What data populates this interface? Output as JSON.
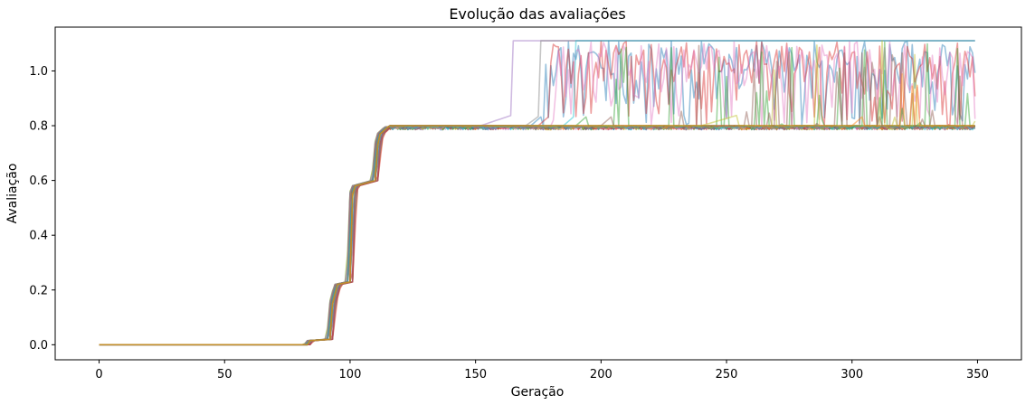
{
  "chart_data": {
    "type": "line",
    "title": "Evolução das avaliações",
    "xlabel": "Geração",
    "ylabel": "Avaliação",
    "xlim": [
      -17.5,
      367.5
    ],
    "ylim": [
      -0.055,
      1.16
    ],
    "xticks": [
      0,
      50,
      100,
      150,
      200,
      250,
      300,
      350
    ],
    "xtick_labels": [
      "0",
      "50",
      "100",
      "150",
      "200",
      "250",
      "300",
      "350"
    ],
    "yticks": [
      0.0,
      0.2,
      0.4,
      0.6,
      0.8,
      1.0
    ],
    "ytick_labels": [
      "0.0",
      "0.2",
      "0.4",
      "0.6",
      "0.8",
      "1.0"
    ],
    "grid": false,
    "legend": "none",
    "series_summary": "Many overlapping translucent runs (one line per run) over generations 0 to 349",
    "common_profile": {
      "x": [
        0,
        83,
        84,
        92,
        93,
        95,
        100,
        101,
        102,
        110,
        111,
        112,
        115,
        120,
        150,
        349
      ],
      "y": [
        0.0,
        0.0,
        0.015,
        0.02,
        0.15,
        0.22,
        0.23,
        0.55,
        0.58,
        0.6,
        0.73,
        0.77,
        0.795,
        0.797,
        0.8,
        0.8
      ]
    },
    "upper_plateau": 1.11,
    "lower_plateau": 0.8,
    "breakouts": [
      {
        "first_gen": 152,
        "switch_gen": 165,
        "final": 1.11,
        "behavior": "steady"
      },
      {
        "first_gen": 170,
        "switch_gen": 176,
        "final": 1.11,
        "behavior": "steady"
      },
      {
        "first_gen": 172,
        "switch_gen": 177,
        "final": 1.11,
        "behavior": "oscillating"
      },
      {
        "first_gen": 175,
        "switch_gen": 180,
        "final": 1.11,
        "behavior": "oscillating"
      },
      {
        "first_gen": 180,
        "switch_gen": 182,
        "final": 1.1,
        "behavior": "oscillating"
      },
      {
        "first_gen": 185,
        "switch_gen": 190,
        "final": 1.11,
        "behavior": "steady"
      },
      {
        "first_gen": 190,
        "switch_gen": 195,
        "final": 0.8,
        "behavior": "spikes"
      },
      {
        "first_gen": 200,
        "switch_gen": 205,
        "final": 0.8,
        "behavior": "spikes"
      },
      {
        "first_gen": 240,
        "switch_gen": 255,
        "final": 0.8,
        "behavior": "spikes"
      },
      {
        "first_gen": 300,
        "switch_gen": 305,
        "final": 0.8,
        "behavior": "spikes"
      }
    ],
    "colors": [
      "#1f77b4",
      "#ff7f0e",
      "#2ca02c",
      "#d62728",
      "#9467bd",
      "#8c564b",
      "#e377c2",
      "#7f7f7f",
      "#bcbd22",
      "#17becf"
    ]
  }
}
